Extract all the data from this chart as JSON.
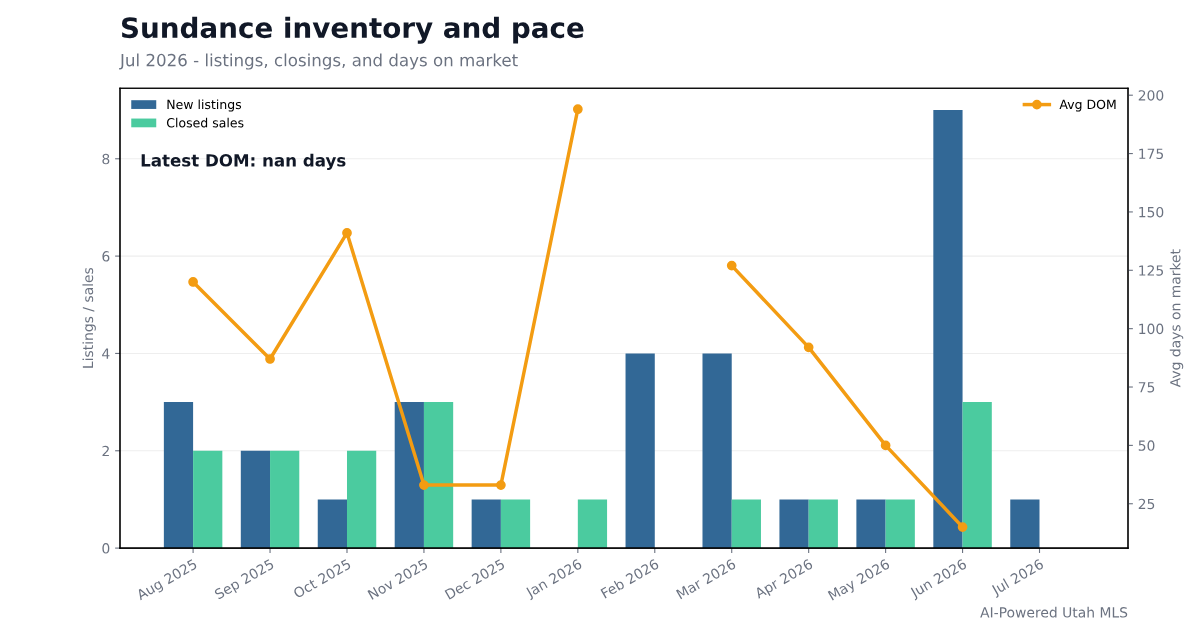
{
  "chart_data": {
    "type": "bar",
    "title": "Sundance inventory and pace",
    "subtitle": "Jul 2026 - listings, closings, and days on market",
    "ylabel": "Listings / sales",
    "y2label": "Avg days on market",
    "categories": [
      "Aug 2025",
      "Sep 2025",
      "Oct 2025",
      "Nov 2025",
      "Dec 2025",
      "Jan 2026",
      "Feb 2026",
      "Mar 2026",
      "Apr 2026",
      "May 2026",
      "Jun 2026",
      "Jul 2026"
    ],
    "series": [
      {
        "name": "New listings",
        "color": "#326896",
        "values": [
          3,
          2,
          1,
          3,
          1,
          0,
          4,
          4,
          1,
          1,
          9,
          1
        ]
      },
      {
        "name": "Closed sales",
        "color": "#4bcb9f",
        "values": [
          2,
          2,
          2,
          3,
          1,
          1,
          0,
          1,
          1,
          1,
          3,
          0
        ]
      },
      {
        "name": "Avg DOM",
        "type": "line",
        "axis": "y2",
        "color": "#f39c12",
        "marker": "circle",
        "values": [
          120,
          87,
          141,
          33,
          33,
          194,
          null,
          127,
          92,
          50,
          15,
          null
        ]
      }
    ],
    "ylim": [
      0,
      9.45
    ],
    "yticks": [
      0,
      2,
      4,
      6,
      8
    ],
    "y2lim": [
      6,
      203
    ],
    "y2ticks": [
      25,
      50,
      75,
      100,
      125,
      150,
      175,
      200
    ],
    "grid": "y",
    "legend": "top left",
    "annotations": [
      "Latest DOM: nan days",
      "AI-Powered Utah MLS"
    ]
  }
}
